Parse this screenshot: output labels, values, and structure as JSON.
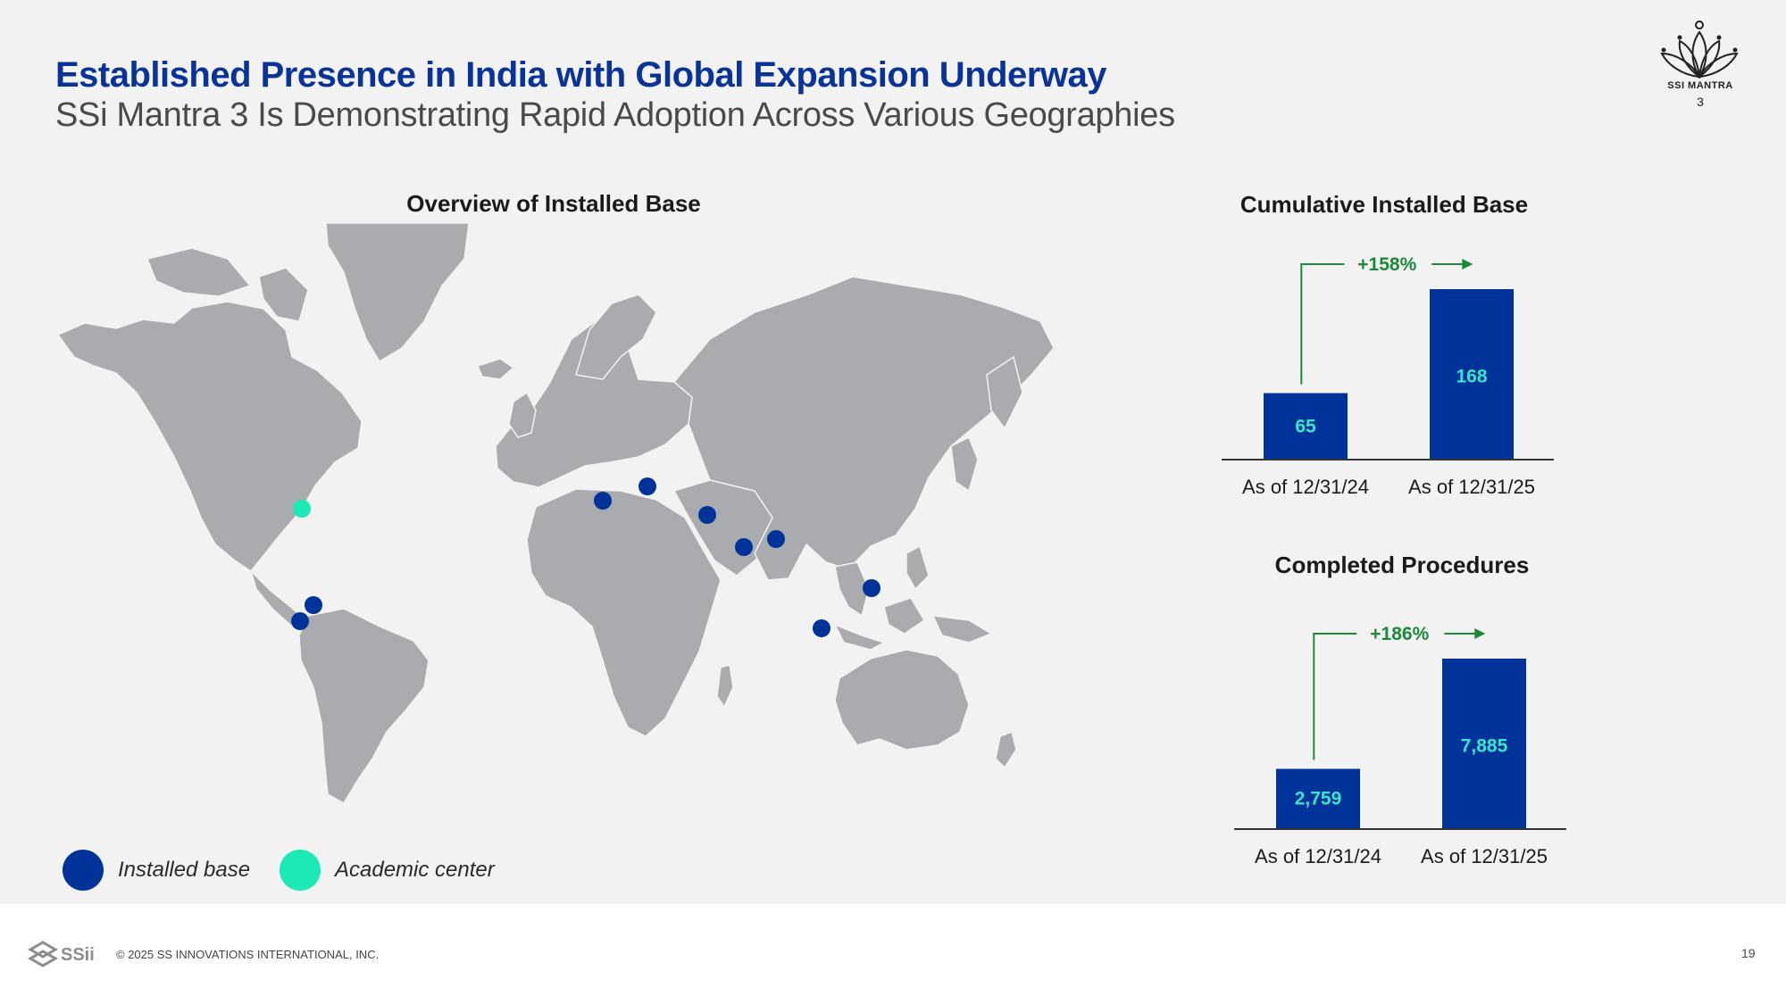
{
  "header": {
    "title": "Established Presence in India with Global Expansion Underway",
    "subtitle": "SSi Mantra 3 Is Demonstrating Rapid Adoption Across Various Geographies"
  },
  "logo": {
    "name": "SSI MANTRA",
    "version": "3"
  },
  "map": {
    "title": "Overview of Installed Base",
    "legend": {
      "installed_label": "Installed base",
      "academic_label": "Academic center"
    }
  },
  "colors": {
    "navy": "#003399",
    "teal": "#1de9b6",
    "green": "#1a8a3a",
    "land": "#a9abaf",
    "bar_label": "#37e5c9"
  },
  "chart_data": [
    {
      "type": "bar",
      "title": "Cumulative Installed Base",
      "categories": [
        "As of 12/31/24",
        "As of 12/31/25"
      ],
      "values": [
        65,
        168
      ],
      "value_labels": [
        "65",
        "168"
      ],
      "growth_label": "+158%"
    },
    {
      "type": "bar",
      "title": "Completed Procedures",
      "categories": [
        "As of 12/31/24",
        "As of 12/31/25"
      ],
      "values": [
        2759,
        7885
      ],
      "value_labels": [
        "2,759",
        "7,885"
      ],
      "growth_label": "+186%"
    }
  ],
  "footer": {
    "brand": "SSii",
    "copyright": "© 2025 SS INNOVATIONS INTERNATIONAL, INC.",
    "page": "19"
  }
}
